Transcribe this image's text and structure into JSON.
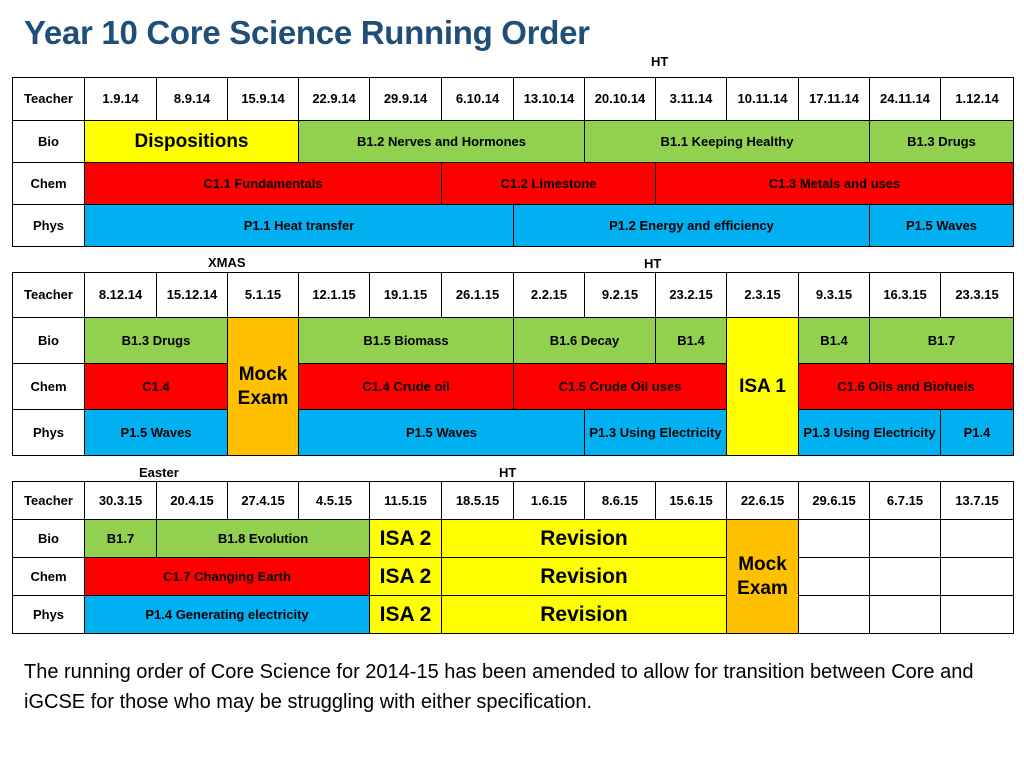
{
  "title": "Year 10 Core Science Running Order",
  "colors": {
    "yellow": "#ffff00",
    "green": "#92d050",
    "red": "#ff0000",
    "blue": "#00b0f0",
    "orange": "#ffc000",
    "title": "#1f4e79"
  },
  "markers": {
    "ht1": "HT",
    "xmas": "XMAS",
    "ht2": "HT",
    "easter": "Easter",
    "ht3": "HT"
  },
  "block1": {
    "teacher_label": "Teacher",
    "dates": [
      "1.9.14",
      "8.9.14",
      "15.9.14",
      "22.9.14",
      "29.9.14",
      "6.10.14",
      "13.10.14",
      "20.10.14",
      "3.11.14",
      "10.11.14",
      "17.11.14",
      "24.11.14",
      "1.12.14"
    ],
    "bio_label": "Bio",
    "bio": [
      "Dispositions",
      "B1.2 Nerves and Hormones",
      "B1.1 Keeping Healthy",
      "B1.3 Drugs"
    ],
    "chem_label": "Chem",
    "chem": [
      "C1.1 Fundamentals",
      "C1.2 Limestone",
      "C1.3 Metals and uses"
    ],
    "phys_label": "Phys",
    "phys": [
      "P1.1 Heat transfer",
      "P1.2 Energy and efficiency",
      "P1.5 Waves"
    ]
  },
  "block2": {
    "teacher_label": "Teacher",
    "dates": [
      "8.12.14",
      "15.12.14",
      "5.1.15",
      "12.1.15",
      "19.1.15",
      "26.1.15",
      "2.2.15",
      "9.2.15",
      "23.2.15",
      "2.3.15",
      "9.3.15",
      "16.3.15",
      "23.3.15"
    ],
    "bio_label": "Bio",
    "bio": [
      "B1.3 Drugs",
      "B1.5 Biomass",
      "B1.6 Decay",
      "B1.4",
      "B1.4",
      "B1.7"
    ],
    "mock_line1": "Mock",
    "mock_line2": "Exam",
    "isa": "ISA 1",
    "chem_label": "Chem",
    "chem": [
      "C1.4",
      "C1.4 Crude oil",
      "C1.5 Crude Oil uses",
      "C1.6 Oils and Biofuels"
    ],
    "phys_label": "Phys",
    "phys": [
      "P1.5 Waves",
      "P1.5 Waves",
      "P1.3 Using Electricity",
      "P1.3 Using Electricity",
      "P1.4"
    ]
  },
  "block3": {
    "teacher_label": "Teacher",
    "dates": [
      "30.3.15",
      "20.4.15",
      "27.4.15",
      "4.5.15",
      "11.5.15",
      "18.5.15",
      "1.6.15",
      "8.6.15",
      "15.6.15",
      "22.6.15",
      "29.6.15",
      "6.7.15",
      "13.7.15"
    ],
    "bio_label": "Bio",
    "bio": [
      "B1.7",
      "B1.8 Evolution"
    ],
    "chem_label": "Chem",
    "chem": [
      "C1.7 Changing Earth"
    ],
    "phys_label": "Phys",
    "phys": [
      "P1.4 Generating electricity"
    ],
    "isa": [
      "ISA 2",
      "ISA 2",
      "ISA 2"
    ],
    "revision": [
      "Revision",
      "Revision",
      "Revision"
    ],
    "mock_line1": "Mock",
    "mock_line2": "Exam"
  },
  "footer_text": "The running order of Core Science for 2014-15 has been amended to allow for transition between Core and iGCSE for those who may be struggling with either specification."
}
